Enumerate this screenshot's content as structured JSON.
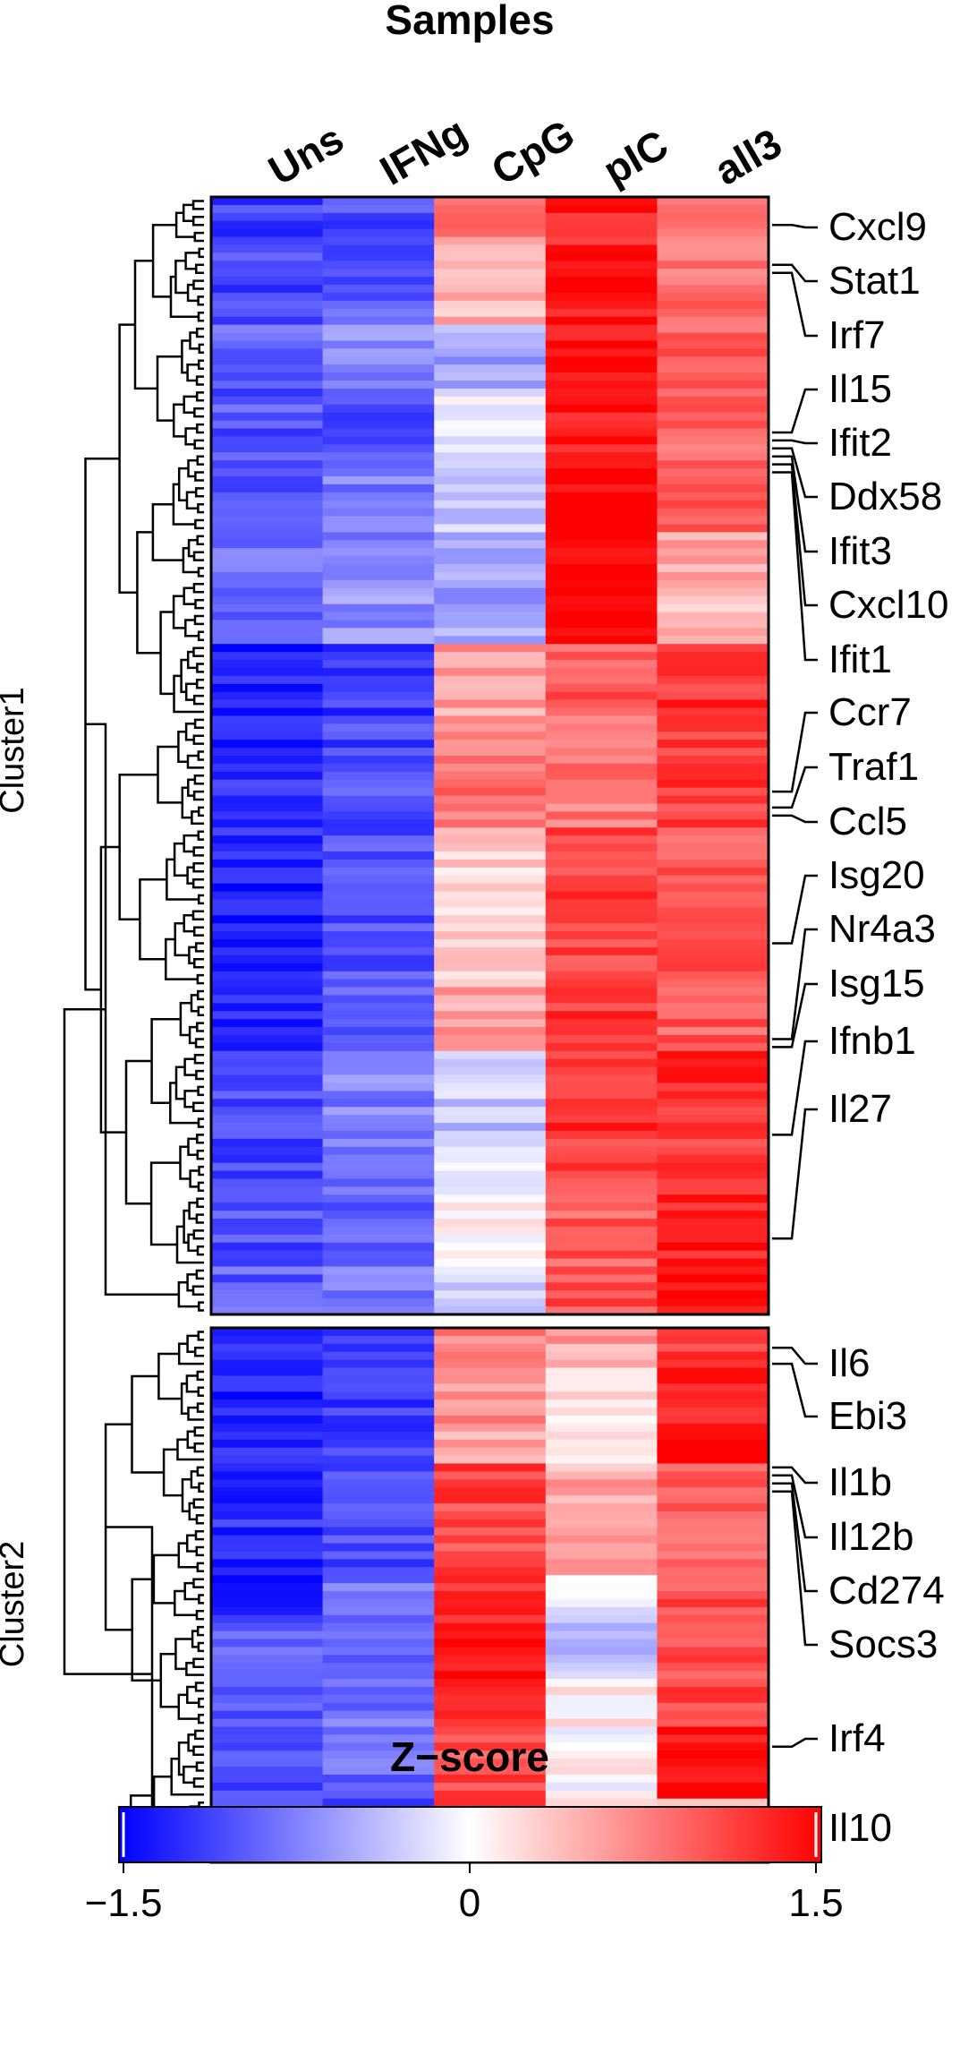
{
  "chart_data": {
    "type": "heatmap",
    "title": "Samples",
    "columns": [
      "Uns",
      "IFNg",
      "CpG",
      "pIC",
      "all3"
    ],
    "clusters": [
      {
        "name": "Cluster1",
        "blocks": [
          {
            "rows": 6,
            "z": [
              -1.15,
              -1.05,
              0.75,
              1.3,
              0.75
            ]
          },
          {
            "rows": 10,
            "z": [
              -1.1,
              -0.95,
              0.45,
              1.35,
              0.85
            ]
          },
          {
            "rows": 8,
            "z": [
              -0.9,
              -0.7,
              -0.55,
              1.45,
              0.95
            ]
          },
          {
            "rows": 8,
            "z": [
              -1.0,
              -1.1,
              -0.05,
              1.4,
              0.9
            ]
          },
          {
            "rows": 10,
            "z": [
              -0.95,
              -0.75,
              -0.35,
              1.4,
              0.95
            ]
          },
          {
            "rows": 6,
            "z": [
              -0.85,
              -0.7,
              -0.45,
              1.55,
              0.55
            ]
          },
          {
            "rows": 8,
            "z": [
              -0.9,
              -0.65,
              -0.55,
              1.6,
              0.35
            ]
          },
          {
            "rows": 9,
            "z": [
              -1.3,
              -1.15,
              0.55,
              0.95,
              1.2
            ]
          },
          {
            "rows": 7,
            "z": [
              -1.25,
              -1.1,
              0.7,
              0.85,
              1.1
            ]
          },
          {
            "rows": 7,
            "z": [
              -1.25,
              -1.05,
              0.85,
              0.75,
              1.15
            ]
          },
          {
            "rows": 10,
            "z": [
              -1.3,
              -1.0,
              0.25,
              1.15,
              0.95
            ]
          },
          {
            "rows": 10,
            "z": [
              -1.35,
              -1.0,
              0.3,
              1.1,
              1.0
            ]
          },
          {
            "rows": 8,
            "z": [
              -1.25,
              -0.95,
              0.55,
              1.15,
              0.95
            ]
          },
          {
            "rows": 10,
            "z": [
              -1.05,
              -0.75,
              -0.35,
              1.2,
              1.25
            ]
          },
          {
            "rows": 8,
            "z": [
              -1.05,
              -0.85,
              -0.05,
              1.15,
              1.15
            ]
          },
          {
            "rows": 9,
            "z": [
              -1.05,
              -0.9,
              0.1,
              0.95,
              1.35
            ]
          },
          {
            "rows": 6,
            "z": [
              -0.95,
              -0.8,
              -0.2,
              1.05,
              1.5
            ]
          }
        ]
      },
      {
        "name": "Cluster2",
        "blocks": [
          {
            "rows": 5,
            "z": [
              -1.2,
              -1.05,
              0.75,
              0.55,
              1.2
            ]
          },
          {
            "rows": 7,
            "z": [
              -1.25,
              -1.15,
              0.65,
              0.2,
              1.25
            ]
          },
          {
            "rows": 5,
            "z": [
              -1.2,
              -1.1,
              0.55,
              0.25,
              1.5
            ]
          },
          {
            "rows": 8,
            "z": [
              -1.25,
              -1.1,
              1.1,
              0.5,
              1.0
            ]
          },
          {
            "rows": 6,
            "z": [
              -1.3,
              -1.05,
              1.05,
              0.65,
              0.95
            ]
          },
          {
            "rows": 6,
            "z": [
              -1.3,
              -0.85,
              1.25,
              -0.2,
              1.05
            ]
          },
          {
            "rows": 7,
            "z": [
              -0.95,
              -0.85,
              1.3,
              -0.35,
              1.0
            ]
          },
          {
            "rows": 6,
            "z": [
              -0.95,
              -0.8,
              1.2,
              0.1,
              1.1
            ]
          },
          {
            "rows": 9,
            "z": [
              -1.0,
              -0.9,
              1.05,
              0.05,
              1.45
            ]
          },
          {
            "rows": 4,
            "z": [
              -1.1,
              -1.05,
              1.4,
              0.05,
              0.45
            ]
          },
          {
            "rows": 4,
            "z": [
              -0.85,
              -0.8,
              1.5,
              -0.4,
              0.35
            ]
          }
        ]
      }
    ],
    "genes": [
      {
        "name": "Cxcl9",
        "cluster": 0,
        "row": 3
      },
      {
        "name": "Stat1",
        "cluster": 0,
        "row": 8
      },
      {
        "name": "Irf7",
        "cluster": 0,
        "row": 9
      },
      {
        "name": "Il15",
        "cluster": 0,
        "row": 29
      },
      {
        "name": "Ifit2",
        "cluster": 0,
        "row": 30
      },
      {
        "name": "Ddx58",
        "cluster": 0,
        "row": 31
      },
      {
        "name": "Ifit3",
        "cluster": 0,
        "row": 32
      },
      {
        "name": "Cxcl10",
        "cluster": 0,
        "row": 33
      },
      {
        "name": "Ifit1",
        "cluster": 0,
        "row": 34
      },
      {
        "name": "Ccr7",
        "cluster": 0,
        "row": 74
      },
      {
        "name": "Traf1",
        "cluster": 0,
        "row": 76
      },
      {
        "name": "Ccl5",
        "cluster": 0,
        "row": 77
      },
      {
        "name": "Isg20",
        "cluster": 0,
        "row": 93
      },
      {
        "name": "Nr4a3",
        "cluster": 0,
        "row": 105
      },
      {
        "name": "Isg15",
        "cluster": 0,
        "row": 106
      },
      {
        "name": "Ifnb1",
        "cluster": 0,
        "row": 117
      },
      {
        "name": "Il27",
        "cluster": 0,
        "row": 130
      },
      {
        "name": "Il6",
        "cluster": 1,
        "row": 2
      },
      {
        "name": "Ebi3",
        "cluster": 1,
        "row": 4
      },
      {
        "name": "Il1b",
        "cluster": 1,
        "row": 17
      },
      {
        "name": "Il12b",
        "cluster": 1,
        "row": 18
      },
      {
        "name": "Cd274",
        "cluster": 1,
        "row": 19
      },
      {
        "name": "Socs3",
        "cluster": 1,
        "row": 20
      },
      {
        "name": "Irf4",
        "cluster": 1,
        "row": 52
      },
      {
        "name": "Il10",
        "cluster": 1,
        "row": 64
      }
    ],
    "colorbar": {
      "title": "Z−score",
      "min": -1.5,
      "max": 1.5,
      "ticks": [
        -1.5,
        0,
        1.5
      ],
      "tick_labels": [
        "−1.5",
        "0",
        "1.5"
      ],
      "low_color": "#0000ff",
      "mid_color": "#ffffff",
      "high_color": "#ff0000"
    },
    "grid": false
  }
}
